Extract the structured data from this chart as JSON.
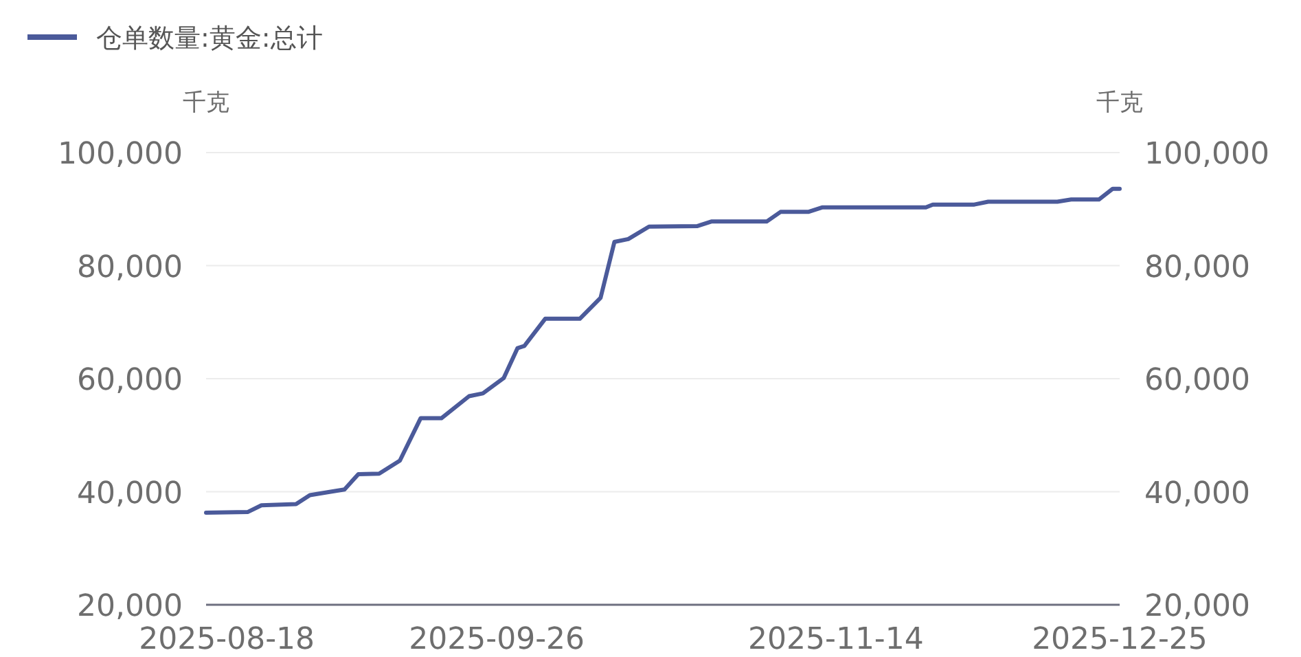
{
  "chart_data": {
    "type": "line",
    "ylabel": "千克",
    "y2label": "千克",
    "grid": "y",
    "legend": "top left",
    "x": [
      "2025-08-15",
      "2025-08-21",
      "2025-08-23",
      "2025-08-28",
      "2025-08-30",
      "2025-09-02",
      "2025-09-04",
      "2025-09-06",
      "2025-09-09",
      "2025-09-12",
      "2025-09-15",
      "2025-09-18",
      "2025-09-22",
      "2025-09-24",
      "2025-09-27",
      "2025-09-29",
      "2025-09-30",
      "2025-10-03",
      "2025-10-08",
      "2025-10-11",
      "2025-10-13",
      "2025-10-15",
      "2025-10-18",
      "2025-10-25",
      "2025-10-27",
      "2025-11-04",
      "2025-11-06",
      "2025-11-10",
      "2025-11-12",
      "2025-11-27",
      "2025-11-28",
      "2025-12-04",
      "2025-12-06",
      "2025-12-16",
      "2025-12-18",
      "2025-12-22",
      "2025-12-24",
      "2025-12-25"
    ],
    "series": [
      {
        "name": "仓单数量:黄金:总计",
        "color": "#4b5a9a",
        "values": [
          36300,
          36400,
          37600,
          37800,
          39400,
          40000,
          40400,
          43100,
          43200,
          45500,
          53000,
          53000,
          56900,
          57400,
          60100,
          65400,
          65800,
          70600,
          70600,
          74300,
          84200,
          84700,
          86900,
          87000,
          87800,
          87800,
          89500,
          89500,
          90300,
          90300,
          90800,
          90800,
          91300,
          91300,
          91700,
          91700,
          93600,
          93600
        ]
      }
    ],
    "xlim": [
      "2025-08-15",
      "2025-12-25"
    ],
    "xticks": [
      "2025-08-18",
      "2025-09-26",
      "2025-11-14",
      "2025-12-25"
    ],
    "ylim": [
      20000,
      100000
    ],
    "yticks": [
      {
        "value": 20000,
        "label": "20,000"
      },
      {
        "value": 40000,
        "label": "40,000"
      },
      {
        "value": 60000,
        "label": "60,000"
      },
      {
        "value": 80000,
        "label": "80,000"
      },
      {
        "value": 100000,
        "label": "100,000"
      }
    ],
    "y2lim": [
      20000,
      100000
    ],
    "y2ticks": [
      {
        "value": 20000,
        "label": "20,000"
      },
      {
        "value": 40000,
        "label": "40,000"
      },
      {
        "value": 60000,
        "label": "60,000"
      },
      {
        "value": 80000,
        "label": "80,000"
      },
      {
        "value": 100000,
        "label": "100,000"
      }
    ]
  }
}
